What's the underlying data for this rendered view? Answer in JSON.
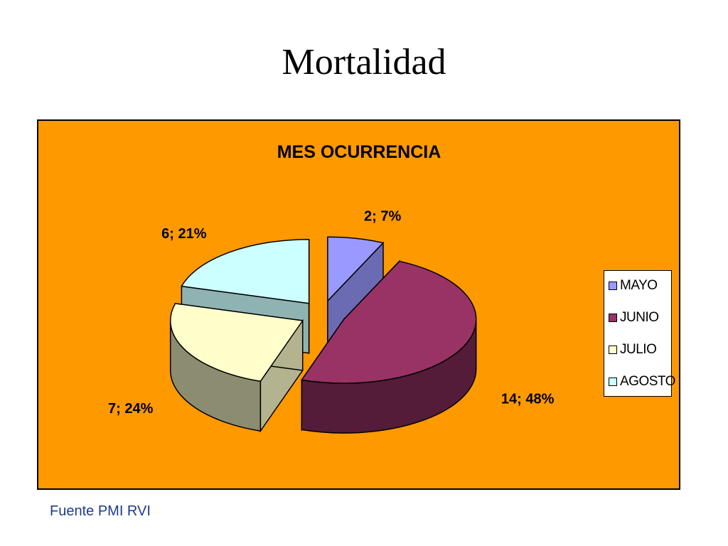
{
  "slide": {
    "title": "Mortalidad",
    "source": "Fuente PMI RVI"
  },
  "colors": {
    "background": "#ff9900",
    "MAYO": "#9999ff",
    "JUNIO": "#993366",
    "JULIO": "#ffffcc",
    "AGOSTO": "#ccffff"
  },
  "chart_data": {
    "type": "pie",
    "style": "3d-exploded",
    "title": "MES OCURRENCIA",
    "legend_position": "right",
    "categories": [
      "MAYO",
      "JUNIO",
      "JULIO",
      "AGOSTO"
    ],
    "values": [
      2,
      14,
      7,
      6
    ],
    "percentages": [
      7,
      48,
      24,
      21
    ],
    "data_labels": [
      "2; 7%",
      "14; 48%",
      "7; 24%",
      "6; 21%"
    ]
  }
}
